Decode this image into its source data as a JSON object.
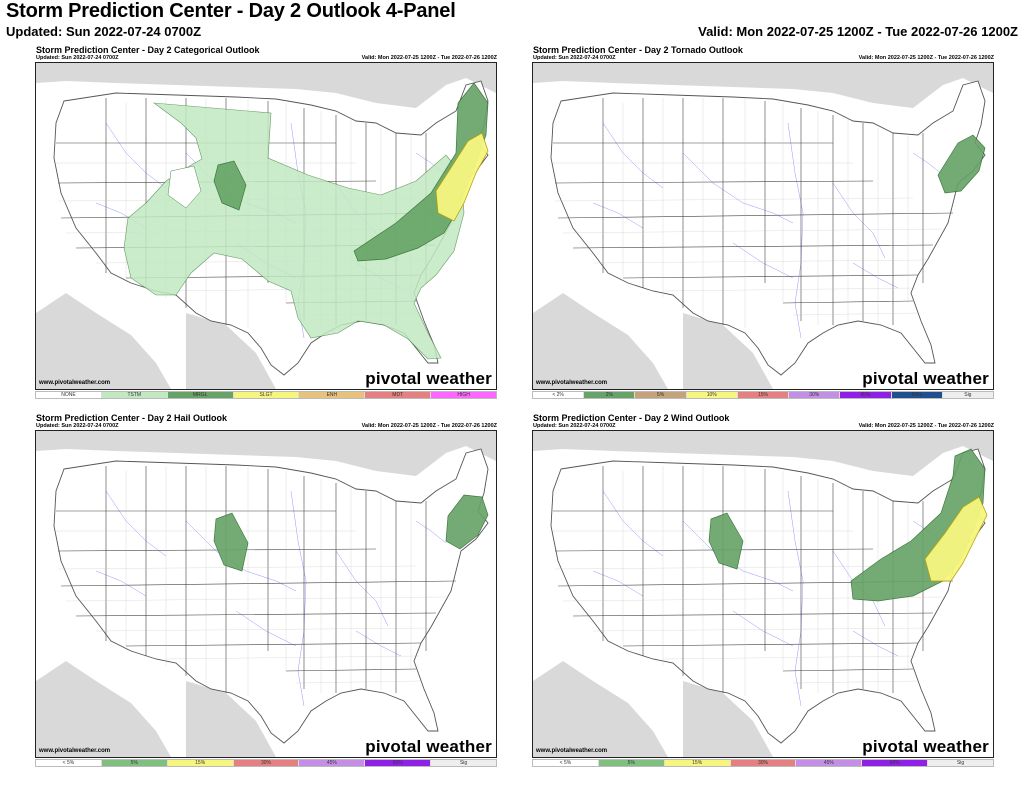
{
  "header": {
    "title": "Storm Prediction Center - Day 2 Outlook 4-Panel",
    "updated": "Updated: Sun 2022-07-24 0700Z",
    "valid": "Valid: Mon 2022-07-25 1200Z - Tue 2022-07-26 1200Z"
  },
  "panels": [
    {
      "title": "Storm Prediction Center - Day 2 Categorical Outlook",
      "updated": "Updated: Sun 2022-07-24 0700Z",
      "valid": "Valid: Mon 2022-07-25 1200Z - Tue 2022-07-26 1200Z",
      "credit": "www.pivotalweather.com",
      "logo": "pivotal weather",
      "legend": [
        {
          "label": "NONE",
          "color": "#ffffff"
        },
        {
          "label": "TSTM",
          "color": "#c1e9c1"
        },
        {
          "label": "MRGL",
          "color": "#66a366"
        },
        {
          "label": "SLGT",
          "color": "#f6f67f"
        },
        {
          "label": "ENH",
          "color": "#e6c27a"
        },
        {
          "label": "MDT",
          "color": "#e67f7f"
        },
        {
          "label": "HIGH",
          "color": "#ff66ff"
        }
      ]
    },
    {
      "title": "Storm Prediction Center - Day 2 Tornado Outlook",
      "updated": "Updated: Sun 2022-07-24 0700Z",
      "valid": "Valid: Mon 2022-07-25 1200Z - Tue 2022-07-26 1200Z",
      "credit": "www.pivotalweather.com",
      "logo": "pivotal weather",
      "legend": [
        {
          "label": "< 2%",
          "color": "#ffffff"
        },
        {
          "label": "2%",
          "color": "#66a366"
        },
        {
          "label": "5%",
          "color": "#c4a27a"
        },
        {
          "label": "10%",
          "color": "#f6f67f"
        },
        {
          "label": "15%",
          "color": "#e67f7f"
        },
        {
          "label": "30%",
          "color": "#c58ee6"
        },
        {
          "label": "45%",
          "color": "#8f20e6"
        },
        {
          "label": "60%",
          "color": "#1f4f8f"
        },
        {
          "label": "Sig",
          "color": "#eeeeee"
        }
      ]
    },
    {
      "title": "Storm Prediction Center - Day 2 Hail Outlook",
      "updated": "Updated: Sun 2022-07-24 0700Z",
      "valid": "Valid: Mon 2022-07-25 1200Z - Tue 2022-07-26 1200Z",
      "credit": "www.pivotalweather.com",
      "logo": "pivotal weather",
      "legend": [
        {
          "label": "< 5%",
          "color": "#ffffff"
        },
        {
          "label": "5%",
          "color": "#7fbf7f"
        },
        {
          "label": "15%",
          "color": "#f6f67f"
        },
        {
          "label": "30%",
          "color": "#e67f7f"
        },
        {
          "label": "45%",
          "color": "#c58ee6"
        },
        {
          "label": "60%",
          "color": "#8f20e6"
        },
        {
          "label": "Sig",
          "color": "#eeeeee"
        }
      ]
    },
    {
      "title": "Storm Prediction Center - Day 2 Wind Outlook",
      "updated": "Updated: Sun 2022-07-24 0700Z",
      "valid": "Valid: Mon 2022-07-25 1200Z - Tue 2022-07-26 1200Z",
      "credit": "www.pivotalweather.com",
      "logo": "pivotal weather",
      "legend": [
        {
          "label": "< 5%",
          "color": "#ffffff"
        },
        {
          "label": "5%",
          "color": "#7fbf7f"
        },
        {
          "label": "15%",
          "color": "#f6f67f"
        },
        {
          "label": "30%",
          "color": "#e67f7f"
        },
        {
          "label": "45%",
          "color": "#c58ee6"
        },
        {
          "label": "60%",
          "color": "#8f20e6"
        },
        {
          "label": "Sig",
          "color": "#eeeeee"
        }
      ]
    }
  ],
  "colors": {
    "land_outside": "#d9d9d9",
    "state_lines": "#444444",
    "rivers": "#7a7aff",
    "tstm": "#c1e9c1",
    "mrgl": "#66a366",
    "slgt": "#f6f67f"
  }
}
